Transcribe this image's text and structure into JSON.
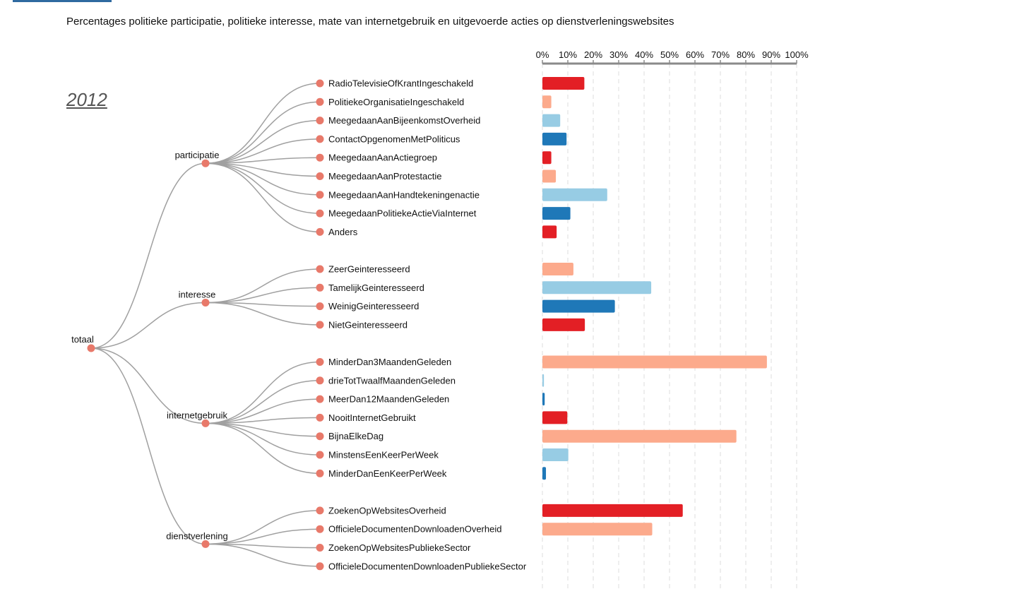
{
  "title": "Percentages politieke participatie, politieke interesse, mate van internetgebruik en uitgevoerde acties op dienstverleningswebsites",
  "year": "2012",
  "colors": {
    "red": "#e31f25",
    "salmon": "#fcaa8c",
    "lightblue": "#97cce4",
    "blue": "#1f78b8",
    "node": "#e8796a",
    "link": "#a0a0a0"
  },
  "chart_data": {
    "type": "bar",
    "orientation": "horizontal",
    "xlim": [
      0,
      100
    ],
    "ticks": [
      "0%",
      "10%",
      "20%",
      "30%",
      "40%",
      "50%",
      "60%",
      "70%",
      "80%",
      "90%",
      "100%"
    ],
    "root": "totaal",
    "groups": [
      {
        "name": "participatie",
        "items": [
          {
            "label": "RadioTelevisieOfKrantIngeschakeld",
            "value": 16.5,
            "color": "red"
          },
          {
            "label": "PolitiekeOrganisatieIngeschakeld",
            "value": 3.5,
            "color": "salmon"
          },
          {
            "label": "MeegedaanAanBijeenkomstOverheid",
            "value": 7,
            "color": "lightblue"
          },
          {
            "label": "ContactOpgenomenMetPoliticus",
            "value": 9.5,
            "color": "blue"
          },
          {
            "label": "MeegedaanAanActiegroep",
            "value": 3.5,
            "color": "red"
          },
          {
            "label": "MeegedaanAanProtestactie",
            "value": 5.3,
            "color": "salmon"
          },
          {
            "label": "MeegedaanAanHandtekeningenactie",
            "value": 25.5,
            "color": "lightblue"
          },
          {
            "label": "MeegedaanPolitiekeActieViaInternet",
            "value": 11,
            "color": "blue"
          },
          {
            "label": "Anders",
            "value": 5.6,
            "color": "red"
          }
        ]
      },
      {
        "name": "interesse",
        "items": [
          {
            "label": "ZeerGeinteresseerd",
            "value": 12.2,
            "color": "salmon"
          },
          {
            "label": "TamelijkGeinteresseerd",
            "value": 42.8,
            "color": "lightblue"
          },
          {
            "label": "WeinigGeinteresseerd",
            "value": 28.5,
            "color": "blue"
          },
          {
            "label": "NietGeinteresseerd",
            "value": 16.7,
            "color": "red"
          }
        ]
      },
      {
        "name": "internetgebruik",
        "items": [
          {
            "label": "MinderDan3MaandenGeleden",
            "value": 88.3,
            "color": "salmon"
          },
          {
            "label": "drieTotTwaalfMaandenGeleden",
            "value": 0.6,
            "color": "lightblue"
          },
          {
            "label": "MeerDan12MaandenGeleden",
            "value": 0.9,
            "color": "blue"
          },
          {
            "label": "NooitInternetGebruikt",
            "value": 9.8,
            "color": "red"
          },
          {
            "label": "BijnaElkeDag",
            "value": 76.3,
            "color": "salmon"
          },
          {
            "label": "MinstensEenKeerPerWeek",
            "value": 10.2,
            "color": "lightblue"
          },
          {
            "label": "MinderDanEenKeerPerWeek",
            "value": 1.4,
            "color": "blue"
          }
        ]
      },
      {
        "name": "dienstverlening",
        "items": [
          {
            "label": "ZoekenOpWebsitesOverheid",
            "value": 55.2,
            "color": "red"
          },
          {
            "label": "OfficieleDocumentenDownloadenOverheid",
            "value": 43.2,
            "color": "salmon"
          },
          {
            "label": "ZoekenOpWebsitesPubliekeSector",
            "value": 0,
            "color": "lightblue"
          },
          {
            "label": "OfficieleDocumentenDownloadenPubliekeSector",
            "value": 0,
            "color": "blue"
          }
        ]
      }
    ]
  }
}
